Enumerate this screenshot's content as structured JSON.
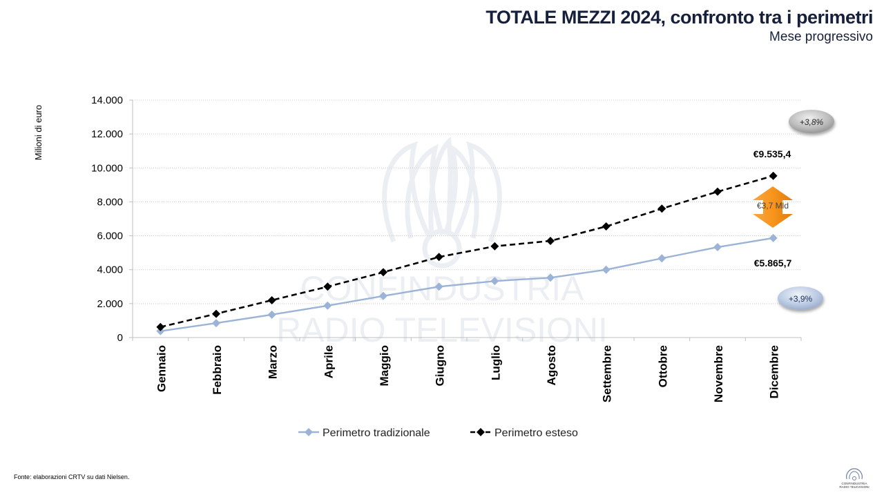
{
  "header": {
    "title": "TOTALE MEZZI 2024, confronto tra i perimetri",
    "subtitle": "Mese progressivo"
  },
  "footer": {
    "source": "Fonte: elaborazioni CRTV su dati Nielsen.",
    "logo_line1": "CONFINDUSTRIA",
    "logo_line2": "RADIO TELEVISIONI"
  },
  "watermark": {
    "line1": "CONFINDUSTRIA",
    "line2": "RADIO TELEVISIONI"
  },
  "chart_data": {
    "type": "line",
    "title": "TOTALE MEZZI 2024, confronto tra i perimetri",
    "xlabel": "",
    "ylabel": "Milioni di euro",
    "ylim": [
      0,
      14000
    ],
    "yticks": [
      0,
      2000,
      4000,
      6000,
      8000,
      10000,
      12000,
      14000
    ],
    "ytick_labels": [
      "0",
      "2.000",
      "4.000",
      "6.000",
      "8.000",
      "10.000",
      "12.000",
      "14.000"
    ],
    "grid": true,
    "legend_position": "bottom",
    "categories": [
      "Gennaio",
      "Febbraio",
      "Marzo",
      "Aprile",
      "Maggio",
      "Giugno",
      "Luglio",
      "Agosto",
      "Settembre",
      "Ottobre",
      "Novembre",
      "Dicembre"
    ],
    "series": [
      {
        "name": "Perimetro tradizionale",
        "color": "#9bb3d6",
        "style": "solid",
        "values": [
          380,
          850,
          1350,
          1880,
          2450,
          3000,
          3330,
          3530,
          4000,
          4670,
          5330,
          5865.7
        ]
      },
      {
        "name": "Perimetro esteso",
        "color": "#000000",
        "style": "dashed",
        "values": [
          620,
          1400,
          2200,
          3000,
          3850,
          4750,
          5380,
          5700,
          6550,
          7600,
          8600,
          9535.4
        ]
      }
    ],
    "annotations": {
      "esteso_end_label": "€9.535,4",
      "tradizionale_end_label": "€5.865,7",
      "esteso_growth": "+3,8%",
      "tradizionale_growth": "+3,9%",
      "gap_label": "€3,7 Mld",
      "gap_color": "#f7941d"
    }
  }
}
